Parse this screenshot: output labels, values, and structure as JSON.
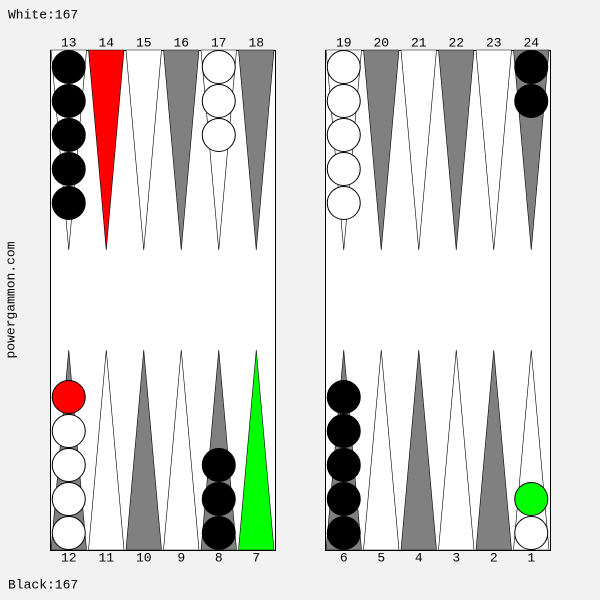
{
  "header": {
    "white_score": "White:167"
  },
  "footer": {
    "black_score": "Black:167"
  },
  "side_text": "powergammon.com",
  "top_points": [
    {
      "label": 13,
      "fill": "#ffffff",
      "checkers": [
        "#000000",
        "#000000",
        "#000000",
        "#000000",
        "#000000"
      ]
    },
    {
      "label": 14,
      "fill": "#ff0000",
      "checkers": []
    },
    {
      "label": 15,
      "fill": "#ffffff",
      "checkers": []
    },
    {
      "label": 16,
      "fill": "#808080",
      "checkers": []
    },
    {
      "label": 17,
      "fill": "#ffffff",
      "checkers": [
        "#ffffff",
        "#ffffff",
        "#ffffff"
      ]
    },
    {
      "label": 18,
      "fill": "#808080",
      "checkers": []
    },
    {
      "label": 19,
      "fill": "#ffffff",
      "checkers": [
        "#ffffff",
        "#ffffff",
        "#ffffff",
        "#ffffff",
        "#ffffff"
      ]
    },
    {
      "label": 20,
      "fill": "#808080",
      "checkers": []
    },
    {
      "label": 21,
      "fill": "#ffffff",
      "checkers": []
    },
    {
      "label": 22,
      "fill": "#808080",
      "checkers": []
    },
    {
      "label": 23,
      "fill": "#ffffff",
      "checkers": []
    },
    {
      "label": 24,
      "fill": "#808080",
      "checkers": [
        "#000000",
        "#000000"
      ]
    }
  ],
  "bottom_points": [
    {
      "label": 12,
      "fill": "#808080",
      "checkers": [
        "#ffffff",
        "#ffffff",
        "#ffffff",
        "#ffffff",
        "#ff0000"
      ]
    },
    {
      "label": 11,
      "fill": "#ffffff",
      "checkers": []
    },
    {
      "label": 10,
      "fill": "#808080",
      "checkers": []
    },
    {
      "label": 9,
      "fill": "#ffffff",
      "checkers": []
    },
    {
      "label": 8,
      "fill": "#808080",
      "checkers": [
        "#000000",
        "#000000",
        "#000000"
      ]
    },
    {
      "label": 7,
      "fill": "#00ff00",
      "checkers": []
    },
    {
      "label": 6,
      "fill": "#808080",
      "checkers": [
        "#000000",
        "#000000",
        "#000000",
        "#000000",
        "#000000"
      ]
    },
    {
      "label": 5,
      "fill": "#ffffff",
      "checkers": []
    },
    {
      "label": 4,
      "fill": "#808080",
      "checkers": []
    },
    {
      "label": 3,
      "fill": "#ffffff",
      "checkers": []
    },
    {
      "label": 2,
      "fill": "#808080",
      "checkers": []
    },
    {
      "label": 1,
      "fill": "#ffffff",
      "checkers": [
        "#ffffff",
        "#00ff00"
      ]
    }
  ]
}
